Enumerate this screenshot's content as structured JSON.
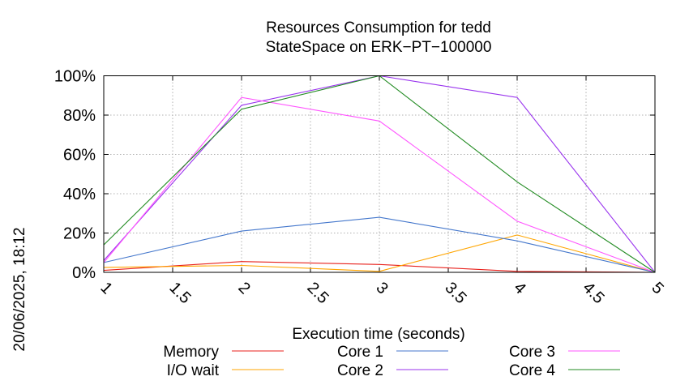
{
  "chart_data": {
    "type": "line",
    "title": "Resources Consumption for tedd",
    "subtitle": "StateSpace on ERK−PT−100000",
    "xlabel": "Execution time (seconds)",
    "ylabel": "",
    "side_label": "20/06/2025, 18:12",
    "xlim": [
      1,
      5
    ],
    "ylim": [
      0,
      100
    ],
    "x_ticks": [
      "1",
      "1.5",
      "2",
      "2.5",
      "3",
      "3.5",
      "4",
      "4.5",
      "5"
    ],
    "y_ticks": [
      "0%",
      "20%",
      "40%",
      "60%",
      "80%",
      "100%"
    ],
    "grid": true,
    "legend_position": "bottom",
    "x": [
      1,
      2,
      3,
      4,
      5
    ],
    "series": [
      {
        "name": "Memory",
        "color": "#e8211c",
        "values": [
          1,
          5.5,
          4,
          0.5,
          0
        ]
      },
      {
        "name": "I/O wait",
        "color": "#ffa500",
        "values": [
          2.5,
          3.5,
          0.5,
          19,
          0
        ]
      },
      {
        "name": "Core 1",
        "color": "#4477cc",
        "values": [
          5,
          21,
          28,
          16,
          0
        ]
      },
      {
        "name": "Core 2",
        "color": "#9933ee",
        "values": [
          6,
          85,
          100,
          89,
          0
        ]
      },
      {
        "name": "Core 3",
        "color": "#ff55ff",
        "values": [
          5,
          89,
          77,
          26,
          0
        ]
      },
      {
        "name": "Core 4",
        "color": "#228b22",
        "values": [
          14,
          83,
          100,
          46,
          0
        ]
      }
    ]
  }
}
